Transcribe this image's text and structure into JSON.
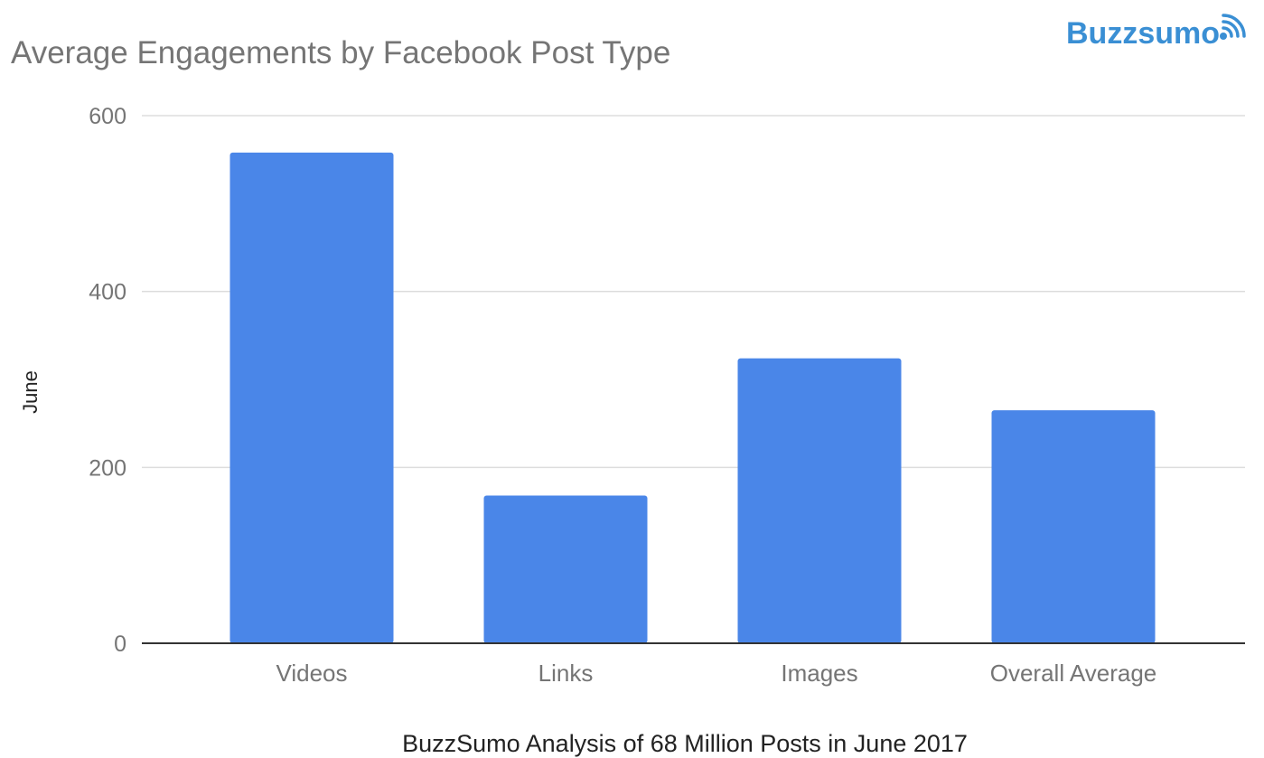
{
  "logo": {
    "text": "Buzzsumo",
    "color": "#3a8fd4"
  },
  "chart_data": {
    "type": "bar",
    "title": "Average Engagements by Facebook Post Type",
    "ylabel": "June",
    "xlabel": "BuzzSumo Analysis of 68 Million Posts in June 2017",
    "categories": [
      "Videos",
      "Links",
      "Images",
      "Overall Average"
    ],
    "values": [
      558,
      168,
      324,
      265
    ],
    "ylim": [
      0,
      600
    ],
    "yticks": [
      0,
      200,
      400,
      600
    ],
    "ytick_labels": [
      "0",
      "200",
      "400",
      "600"
    ],
    "grid": true,
    "legend": "none",
    "bar_color": "#4a86e8",
    "gridline_color": "#dddddd",
    "axis_color": "#333333"
  }
}
